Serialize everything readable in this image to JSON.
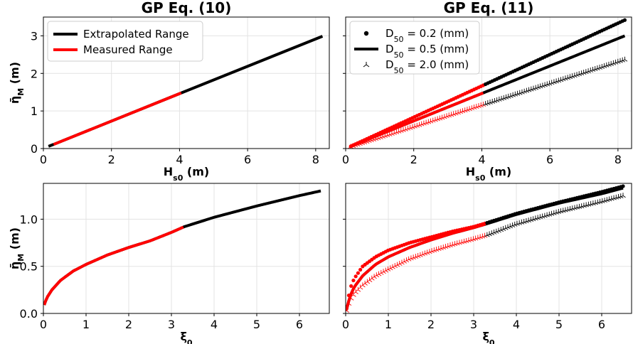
{
  "chart_data": [
    {
      "type": "line",
      "title": "GP Eq. (10)",
      "xlabel": "H_s0 (m)",
      "ylabel": "η̄_M (m)",
      "xlim": [
        0,
        8.4
      ],
      "ylim": [
        0,
        3.5
      ],
      "xticks": [
        "0",
        "2",
        "4",
        "6",
        "8"
      ],
      "yticks": [
        "0",
        "1",
        "2",
        "3"
      ],
      "grid": true,
      "legend_position": "upper-left",
      "series": [
        {
          "name": "Extrapolated Range",
          "color": "#000000",
          "style": "line",
          "x": [
            0.15,
            0.3,
            4.05,
            8.2
          ],
          "y": [
            0.06,
            0.11,
            1.48,
            2.99
          ]
        },
        {
          "name": "Measured Range",
          "color": "#ff0000",
          "style": "line",
          "x": [
            0.3,
            4.05
          ],
          "y": [
            0.11,
            1.48
          ]
        }
      ]
    },
    {
      "type": "scatter",
      "title": "GP Eq. (11)",
      "xlabel": "H_s0 (m)",
      "ylabel": "",
      "xlim": [
        0,
        8.4
      ],
      "ylim": [
        0,
        3.5
      ],
      "xticks": [
        "0",
        "2",
        "4",
        "6",
        "8"
      ],
      "yticks": [],
      "grid": true,
      "legend_position": "upper-left",
      "measured_max_x": 4.05,
      "measured_color": "#ff0000",
      "series": [
        {
          "name": "D50 = 0.2 (mm)",
          "legend_base": "D",
          "legend_sub": "50",
          "legend_rest": " = 0.2 (mm)",
          "marker": "dot",
          "color": "#000000",
          "x": [
            0.15,
            8.2
          ],
          "y": [
            0.06,
            3.42
          ]
        },
        {
          "name": "D50 = 0.5 (mm)",
          "legend_base": "D",
          "legend_sub": "50",
          "legend_rest": " = 0.5 (mm)",
          "marker": "line",
          "color": "#000000",
          "x": [
            0.15,
            8.2
          ],
          "y": [
            0.06,
            3.0
          ]
        },
        {
          "name": "D50 = 2.0 (mm)",
          "legend_base": "D",
          "legend_sub": "50",
          "legend_rest": " = 2.0 (mm)",
          "marker": "tri",
          "color": "#000000",
          "x": [
            0.15,
            8.2
          ],
          "y": [
            0.05,
            2.37
          ]
        }
      ]
    },
    {
      "type": "line",
      "title": "",
      "xlabel": "ξ_0",
      "ylabel": "η̄_M (m)",
      "xlim": [
        0,
        6.7
      ],
      "ylim": [
        0,
        1.38
      ],
      "xticks": [
        "0",
        "1",
        "2",
        "3",
        "4",
        "5",
        "6"
      ],
      "yticks": [
        "0.0",
        "0.5",
        "1.0"
      ],
      "grid": true,
      "measured_max_x": 3.3,
      "series": [
        {
          "name": "",
          "color": "#000000",
          "style": "line",
          "x": [
            0.02,
            0.05,
            0.1,
            0.2,
            0.4,
            0.7,
            1.0,
            1.5,
            2.0,
            2.5,
            3.0,
            3.3,
            4.0,
            5.0,
            6.0,
            6.5
          ],
          "y": [
            0.09,
            0.13,
            0.18,
            0.25,
            0.35,
            0.45,
            0.52,
            0.62,
            0.7,
            0.77,
            0.86,
            0.92,
            1.02,
            1.14,
            1.25,
            1.3
          ]
        }
      ]
    },
    {
      "type": "scatter",
      "title": "",
      "xlabel": "ξ_0",
      "ylabel": "",
      "xlim": [
        0,
        6.7
      ],
      "ylim": [
        0,
        1.38
      ],
      "xticks": [
        "0",
        "1",
        "2",
        "3",
        "4",
        "5",
        "6"
      ],
      "yticks": [],
      "grid": true,
      "measured_max_x": 3.3,
      "measured_color": "#ff0000",
      "series": [
        {
          "name": "D50 = 0.2 (mm)",
          "marker": "dot",
          "color": "#000000",
          "x": [
            0.02,
            0.1,
            0.2,
            0.4,
            0.7,
            1.0,
            1.5,
            2.0,
            2.5,
            3.0,
            3.3,
            4.0,
            5.0,
            6.0,
            6.5
          ],
          "y": [
            0.05,
            0.26,
            0.37,
            0.5,
            0.6,
            0.67,
            0.75,
            0.81,
            0.87,
            0.92,
            0.96,
            1.06,
            1.18,
            1.29,
            1.35
          ]
        },
        {
          "name": "D50 = 0.5 (mm)",
          "marker": "line",
          "color": "#000000",
          "x": [
            0.02,
            0.1,
            0.2,
            0.4,
            0.7,
            1.0,
            1.5,
            2.0,
            2.5,
            3.0,
            3.3,
            4.0,
            5.0,
            6.0,
            6.5
          ],
          "y": [
            0.04,
            0.18,
            0.28,
            0.4,
            0.52,
            0.6,
            0.7,
            0.78,
            0.85,
            0.91,
            0.95,
            1.05,
            1.17,
            1.27,
            1.33
          ]
        },
        {
          "name": "D50 = 2.0 (mm)",
          "marker": "tri",
          "color": "#000000",
          "x": [
            0.02,
            0.1,
            0.2,
            0.4,
            0.7,
            1.0,
            1.5,
            2.0,
            2.5,
            3.0,
            3.3,
            4.0,
            5.0,
            6.0,
            6.5
          ],
          "y": [
            0.03,
            0.14,
            0.21,
            0.3,
            0.4,
            0.47,
            0.58,
            0.66,
            0.73,
            0.79,
            0.83,
            0.95,
            1.08,
            1.19,
            1.25
          ]
        }
      ]
    }
  ]
}
